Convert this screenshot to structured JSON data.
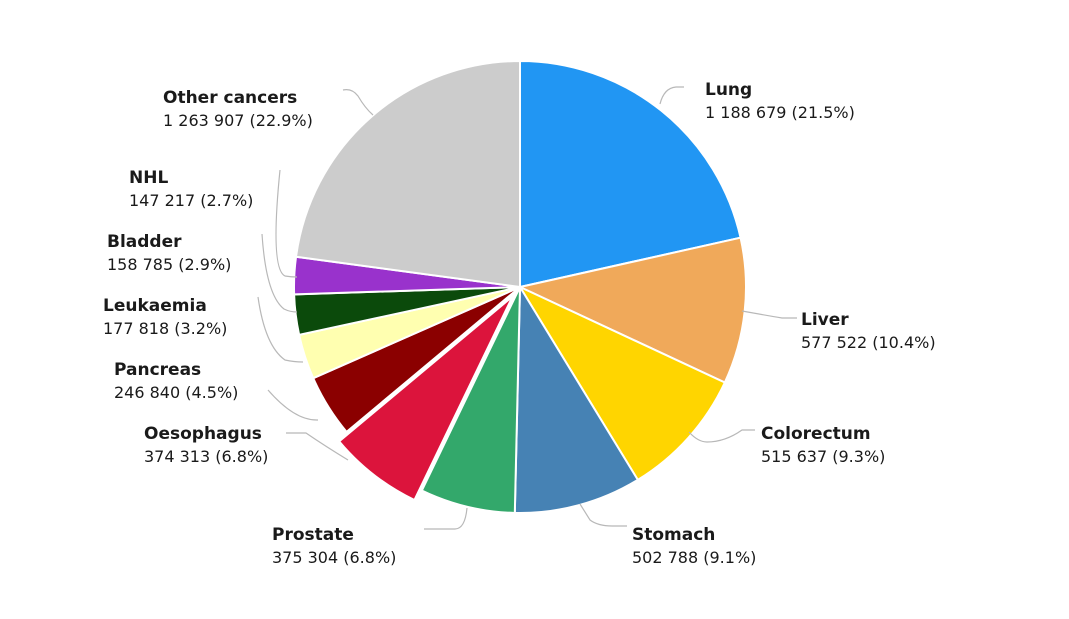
{
  "chart_data": {
    "type": "pie",
    "title": "",
    "start_angle_deg": 0,
    "direction": "clockwise",
    "slices": [
      {
        "name": "Lung",
        "value": 1188679,
        "value_label": "1 188 679",
        "pct": 21.5,
        "pct_label": "(21.5%)",
        "color": "#2196F3",
        "exploded": false
      },
      {
        "name": "Liver",
        "value": 577522,
        "value_label": "577 522",
        "pct": 10.4,
        "pct_label": "(10.4%)",
        "color": "#F0A95A",
        "exploded": false
      },
      {
        "name": "Colorectum",
        "value": 515637,
        "value_label": "515 637",
        "pct": 9.3,
        "pct_label": "(9.3%)",
        "color": "#FFD500",
        "exploded": false
      },
      {
        "name": "Stomach",
        "value": 502788,
        "value_label": "502 788",
        "pct": 9.1,
        "pct_label": "(9.1%)",
        "color": "#4682B4",
        "exploded": false
      },
      {
        "name": "Prostate",
        "value": 375304,
        "value_label": "375 304",
        "pct": 6.8,
        "pct_label": "(6.8%)",
        "color": "#33A86B",
        "exploded": false
      },
      {
        "name": "Oesophagus",
        "value": 374313,
        "value_label": "374 313",
        "pct": 6.8,
        "pct_label": "(6.8%)",
        "color": "#DC143C",
        "exploded": true
      },
      {
        "name": "Pancreas",
        "value": 246840,
        "value_label": "246 840",
        "pct": 4.5,
        "pct_label": "(4.5%)",
        "color": "#8B0000",
        "exploded": false
      },
      {
        "name": "Leukaemia",
        "value": 177818,
        "value_label": "177 818",
        "pct": 3.2,
        "pct_label": "(3.2%)",
        "color": "#FFFFB0",
        "exploded": false
      },
      {
        "name": "Bladder",
        "value": 158785,
        "value_label": "158 785",
        "pct": 2.9,
        "pct_label": "(2.9%)",
        "color": "#0B4A0B",
        "exploded": false
      },
      {
        "name": "NHL",
        "value": 147217,
        "value_label": "147 217",
        "pct": 2.7,
        "pct_label": "(2.7%)",
        "color": "#9932CC",
        "exploded": false
      },
      {
        "name": "Other cancers",
        "value": 1263907,
        "value_label": "1 263 907",
        "pct": 22.9,
        "pct_label": "(22.9%)",
        "color": "#CCCCCC",
        "exploded": false
      }
    ]
  }
}
